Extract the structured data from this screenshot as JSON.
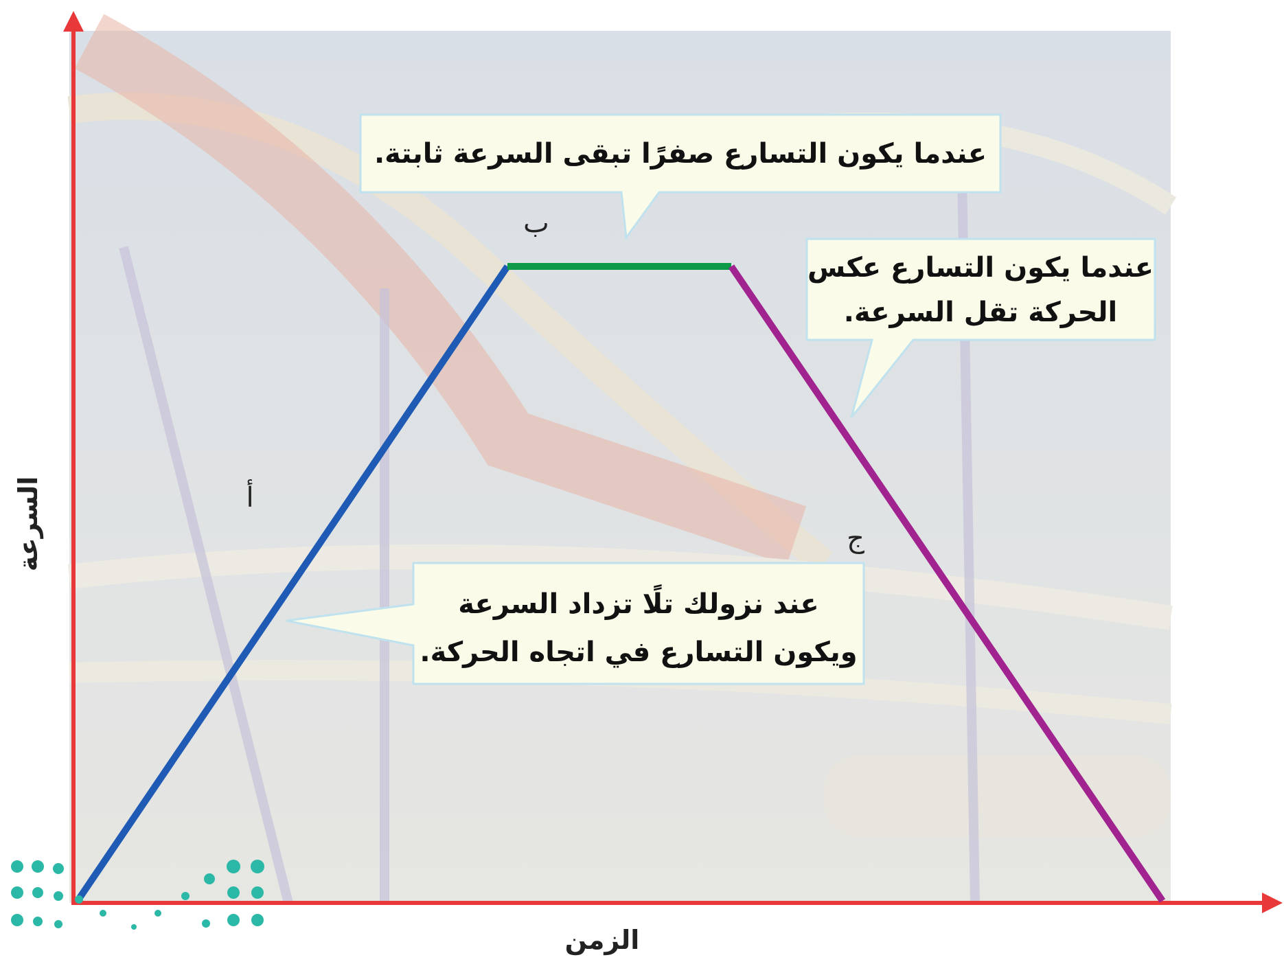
{
  "axes": {
    "y_label": "السرعة",
    "x_label": "الزمن"
  },
  "points": [
    {
      "label": "أ"
    },
    {
      "label": "ب"
    },
    {
      "label": "ج"
    }
  ],
  "callouts": [
    {
      "lines": [
        "عندما يكون التسارع صفرًا تبقى السرعة ثابتة."
      ]
    },
    {
      "lines": [
        "عندما يكون التسارع عكس",
        "الحركة تقل السرعة."
      ]
    },
    {
      "lines": [
        "عند نزولك تلًا تزداد السرعة",
        "ويكون التسارع في اتجاه الحركة."
      ]
    }
  ]
}
